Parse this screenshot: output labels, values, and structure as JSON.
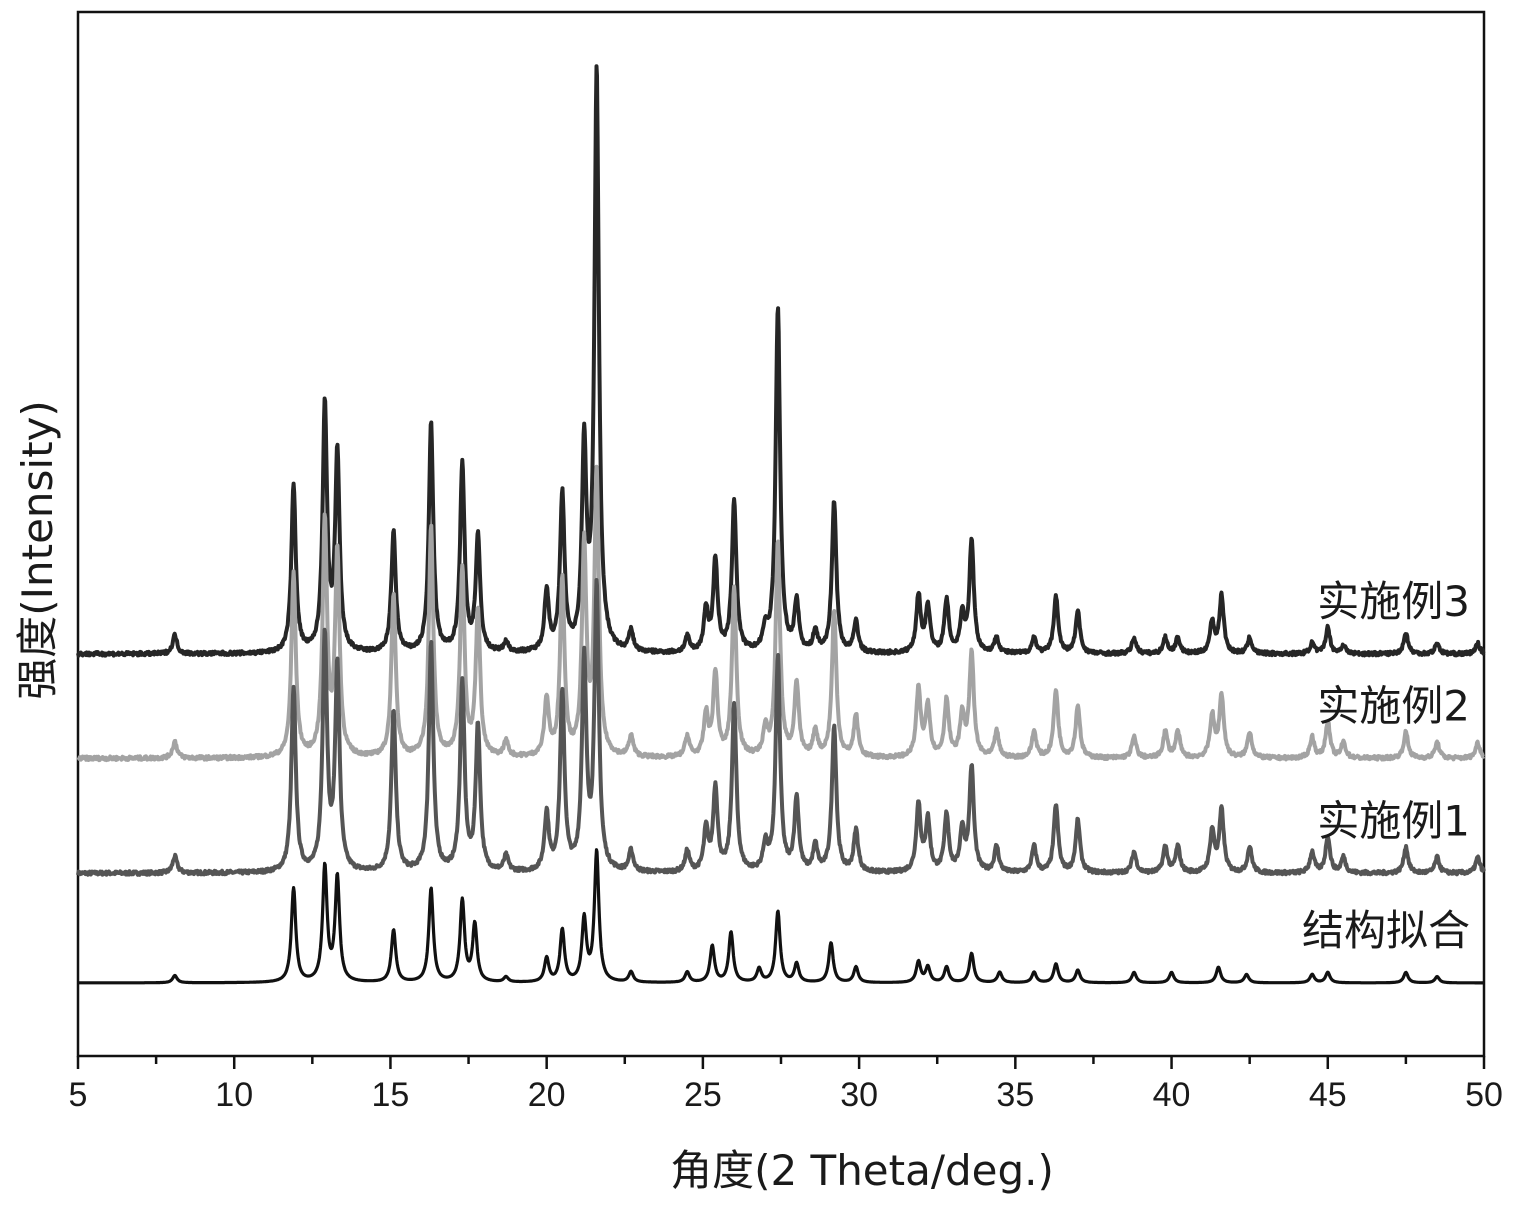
{
  "chart_data": {
    "type": "line",
    "title": "",
    "xlabel": "角度(2 Theta/deg.)",
    "ylabel": "强度(Intensity)",
    "xlim": [
      5,
      50
    ],
    "xticks": [
      5,
      10,
      15,
      20,
      25,
      30,
      35,
      40,
      45,
      50
    ],
    "xtick_labels": [
      "5",
      "10",
      "15",
      "20",
      "25",
      "30",
      "35",
      "40",
      "45",
      "50"
    ],
    "ylim": [
      0,
      100
    ],
    "yticks_shown": false,
    "grid": false,
    "legend": "series labels at right end of each curve",
    "series": [
      {
        "name": "结构拟合",
        "color": "#111111",
        "baseline": 7,
        "peaks": [
          [
            8.1,
            0.7
          ],
          [
            11.9,
            9.0
          ],
          [
            12.9,
            11.0
          ],
          [
            13.3,
            10.0
          ],
          [
            15.1,
            5.0
          ],
          [
            16.3,
            9.0
          ],
          [
            17.3,
            7.8
          ],
          [
            17.7,
            5.5
          ],
          [
            18.7,
            0.5
          ],
          [
            20.0,
            2.3
          ],
          [
            20.5,
            5.0
          ],
          [
            21.2,
            6.0
          ],
          [
            21.6,
            12.5
          ],
          [
            22.7,
            1.0
          ],
          [
            24.5,
            1.0
          ],
          [
            25.3,
            3.5
          ],
          [
            25.9,
            4.8
          ],
          [
            26.8,
            1.3
          ],
          [
            27.4,
            6.8
          ],
          [
            28.0,
            1.8
          ],
          [
            29.1,
            3.8
          ],
          [
            29.9,
            1.5
          ],
          [
            31.9,
            2.0
          ],
          [
            32.2,
            1.5
          ],
          [
            32.8,
            1.5
          ],
          [
            33.6,
            2.8
          ],
          [
            34.5,
            1.0
          ],
          [
            35.6,
            1.0
          ],
          [
            36.3,
            1.8
          ],
          [
            37.0,
            1.2
          ],
          [
            38.8,
            1.0
          ],
          [
            40.0,
            1.0
          ],
          [
            41.5,
            1.5
          ],
          [
            42.4,
            0.8
          ],
          [
            44.5,
            0.8
          ],
          [
            45.0,
            1.0
          ],
          [
            47.5,
            1.0
          ],
          [
            48.5,
            0.6
          ]
        ]
      },
      {
        "name": "实施例1",
        "color": "#555555",
        "baseline": 17.5,
        "peaks": [
          [
            8.1,
            1.6
          ],
          [
            11.9,
            17.5
          ],
          [
            12.9,
            22.5
          ],
          [
            13.3,
            19.5
          ],
          [
            15.1,
            15.5
          ],
          [
            16.3,
            22.0
          ],
          [
            17.3,
            18.0
          ],
          [
            17.8,
            14.0
          ],
          [
            18.7,
            1.5
          ],
          [
            20.0,
            5.5
          ],
          [
            20.5,
            17.0
          ],
          [
            21.2,
            20.0
          ],
          [
            21.6,
            27.0
          ],
          [
            22.7,
            2.0
          ],
          [
            24.5,
            2.0
          ],
          [
            25.1,
            4.0
          ],
          [
            25.4,
            8.0
          ],
          [
            26.0,
            16.0
          ],
          [
            27.0,
            2.5
          ],
          [
            27.4,
            20.5
          ],
          [
            28.0,
            7.0
          ],
          [
            28.6,
            2.5
          ],
          [
            29.2,
            14.0
          ],
          [
            29.9,
            4.0
          ],
          [
            31.9,
            6.5
          ],
          [
            32.2,
            5.0
          ],
          [
            32.8,
            5.5
          ],
          [
            33.3,
            4.0
          ],
          [
            33.6,
            10.0
          ],
          [
            34.4,
            2.5
          ],
          [
            35.6,
            2.5
          ],
          [
            36.3,
            6.5
          ],
          [
            37.0,
            5.0
          ],
          [
            38.8,
            2.0
          ],
          [
            39.8,
            2.5
          ],
          [
            40.2,
            2.5
          ],
          [
            41.3,
            4.0
          ],
          [
            41.6,
            6.0
          ],
          [
            42.5,
            2.5
          ],
          [
            44.5,
            2.0
          ],
          [
            45.0,
            3.5
          ],
          [
            45.5,
            1.5
          ],
          [
            47.5,
            2.5
          ],
          [
            48.5,
            1.5
          ],
          [
            49.8,
            1.5
          ]
        ]
      },
      {
        "name": "实施例2",
        "color": "#a3a3a3",
        "baseline": 28.5,
        "peaks": [
          [
            8.1,
            1.6
          ],
          [
            11.9,
            17.5
          ],
          [
            12.9,
            22.5
          ],
          [
            13.3,
            19.5
          ],
          [
            15.1,
            15.5
          ],
          [
            16.3,
            22.0
          ],
          [
            17.3,
            18.0
          ],
          [
            17.8,
            14.0
          ],
          [
            18.7,
            1.5
          ],
          [
            20.0,
            5.5
          ],
          [
            20.5,
            17.0
          ],
          [
            21.2,
            20.0
          ],
          [
            21.6,
            27.0
          ],
          [
            22.7,
            2.0
          ],
          [
            24.5,
            2.0
          ],
          [
            25.1,
            4.0
          ],
          [
            25.4,
            8.0
          ],
          [
            26.0,
            16.0
          ],
          [
            27.0,
            2.5
          ],
          [
            27.4,
            20.5
          ],
          [
            28.0,
            7.0
          ],
          [
            28.6,
            2.5
          ],
          [
            29.2,
            14.0
          ],
          [
            29.9,
            4.0
          ],
          [
            31.9,
            6.5
          ],
          [
            32.2,
            5.0
          ],
          [
            32.8,
            5.5
          ],
          [
            33.3,
            4.0
          ],
          [
            33.6,
            10.0
          ],
          [
            34.4,
            2.5
          ],
          [
            35.6,
            2.5
          ],
          [
            36.3,
            6.5
          ],
          [
            37.0,
            5.0
          ],
          [
            38.8,
            2.0
          ],
          [
            39.8,
            2.5
          ],
          [
            40.2,
            2.5
          ],
          [
            41.3,
            4.0
          ],
          [
            41.6,
            6.0
          ],
          [
            42.5,
            2.5
          ],
          [
            44.5,
            2.0
          ],
          [
            45.0,
            3.5
          ],
          [
            45.5,
            1.5
          ],
          [
            47.5,
            2.5
          ],
          [
            48.5,
            1.5
          ],
          [
            49.8,
            1.5
          ]
        ]
      },
      {
        "name": "实施例3",
        "color": "#262626",
        "baseline": 38.5,
        "peaks": [
          [
            8.1,
            1.8
          ],
          [
            11.9,
            16.0
          ],
          [
            12.9,
            23.5
          ],
          [
            13.3,
            19.0
          ],
          [
            15.1,
            11.5
          ],
          [
            16.3,
            22.0
          ],
          [
            17.3,
            18.0
          ],
          [
            17.8,
            11.0
          ],
          [
            18.7,
            1.0
          ],
          [
            20.0,
            5.8
          ],
          [
            20.5,
            15.0
          ],
          [
            21.2,
            19.5
          ],
          [
            21.6,
            55.5
          ],
          [
            22.7,
            2.0
          ],
          [
            24.5,
            1.5
          ],
          [
            25.1,
            4.0
          ],
          [
            25.4,
            8.8
          ],
          [
            26.0,
            14.5
          ],
          [
            27.0,
            2.0
          ],
          [
            27.4,
            33.0
          ],
          [
            28.0,
            4.8
          ],
          [
            28.6,
            2.0
          ],
          [
            29.2,
            14.5
          ],
          [
            29.9,
            3.0
          ],
          [
            31.9,
            5.5
          ],
          [
            32.2,
            4.5
          ],
          [
            32.8,
            5.0
          ],
          [
            33.3,
            3.5
          ],
          [
            33.6,
            10.8
          ],
          [
            34.4,
            1.5
          ],
          [
            35.6,
            1.5
          ],
          [
            36.3,
            5.5
          ],
          [
            37.0,
            4.0
          ],
          [
            38.8,
            1.5
          ],
          [
            39.8,
            1.5
          ],
          [
            40.2,
            1.5
          ],
          [
            41.3,
            3.0
          ],
          [
            41.6,
            5.5
          ],
          [
            42.5,
            1.5
          ],
          [
            44.5,
            1.0
          ],
          [
            45.0,
            2.5
          ],
          [
            45.5,
            0.8
          ],
          [
            47.5,
            2.0
          ],
          [
            48.5,
            1.0
          ],
          [
            49.8,
            1.0
          ]
        ]
      }
    ]
  }
}
